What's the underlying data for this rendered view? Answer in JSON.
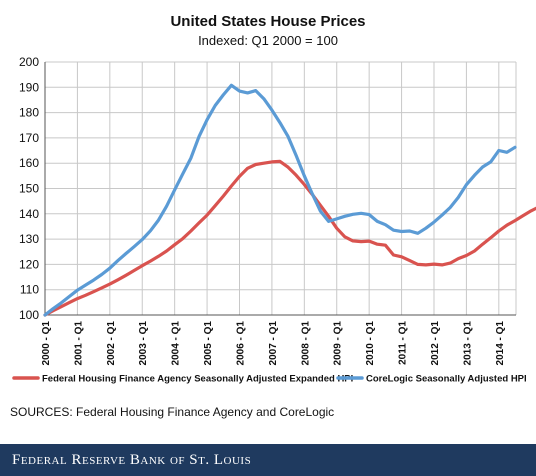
{
  "chart_data": {
    "type": "line",
    "title": "United States House Prices",
    "subtitle": "Indexed: Q1 2000 = 100",
    "xlabel": "",
    "ylabel": "",
    "ylim": [
      100,
      200
    ],
    "yticks": [
      100,
      110,
      120,
      130,
      140,
      150,
      160,
      170,
      180,
      190,
      200
    ],
    "xticks": [
      "2000 - Q1",
      "2001 - Q1",
      "2002 - Q1",
      "2003 - Q1",
      "2004 - Q1",
      "2005 - Q1",
      "2006 - Q1",
      "2007 - Q1",
      "2008 - Q1",
      "2009 - Q1",
      "2010 - Q1",
      "2011 - Q1",
      "2012 - Q1",
      "2013 - Q1",
      "2014 - Q1"
    ],
    "grid": true,
    "legend": "bottom",
    "series": [
      {
        "name": "Federal Housing Finance Agency Seasonally Adjusted Expanded HPI",
        "color": "#d9534f",
        "values": [
          100,
          101.7,
          103.3,
          104.9,
          106.5,
          107.8,
          109.2,
          110.7,
          112.2,
          113.9,
          115.7,
          117.6,
          119.5,
          121.3,
          123.2,
          125.3,
          127.8,
          130.2,
          133.2,
          136.4,
          139.5,
          143.2,
          147,
          151,
          154.8,
          158,
          159.5,
          160,
          160.5,
          160.7,
          158.4,
          155.2,
          151.6,
          147.6,
          143.3,
          139,
          134.3,
          130.9,
          129.3,
          129,
          129.2,
          128,
          127.6,
          123.7,
          123,
          121.5,
          120,
          119.8,
          120.1,
          119.8,
          120.5,
          122.3,
          123.5,
          125.3,
          128,
          130.5,
          133.2,
          135.5,
          137.3,
          139.3,
          141.2,
          142.8
        ]
      },
      {
        "name": "CoreLogic Seasonally Adjusted HPI",
        "color": "#5b9bd5",
        "values": [
          100,
          102.5,
          104.8,
          107.3,
          109.8,
          111.8,
          113.8,
          116,
          118.5,
          121.5,
          124.3,
          127,
          129.8,
          133.3,
          137.5,
          143,
          149.5,
          155.8,
          162,
          170.5,
          177.2,
          182.8,
          187,
          190.8,
          188.5,
          187.8,
          188.7,
          185.5,
          181,
          176,
          170.5,
          163,
          155,
          147.8,
          141,
          137,
          138,
          139,
          139.8,
          140.2,
          139.7,
          137,
          135.7,
          133.5,
          133,
          133.2,
          132.3,
          134.3,
          136.7,
          139.5,
          142.5,
          146.5,
          151.5,
          155.2,
          158.5,
          160.5,
          165,
          164.3,
          166.3
        ]
      }
    ]
  },
  "sources": "SOURCES: Federal Housing Finance Agency and CoreLogic",
  "footer": "Federal Reserve Bank of St. Louis"
}
